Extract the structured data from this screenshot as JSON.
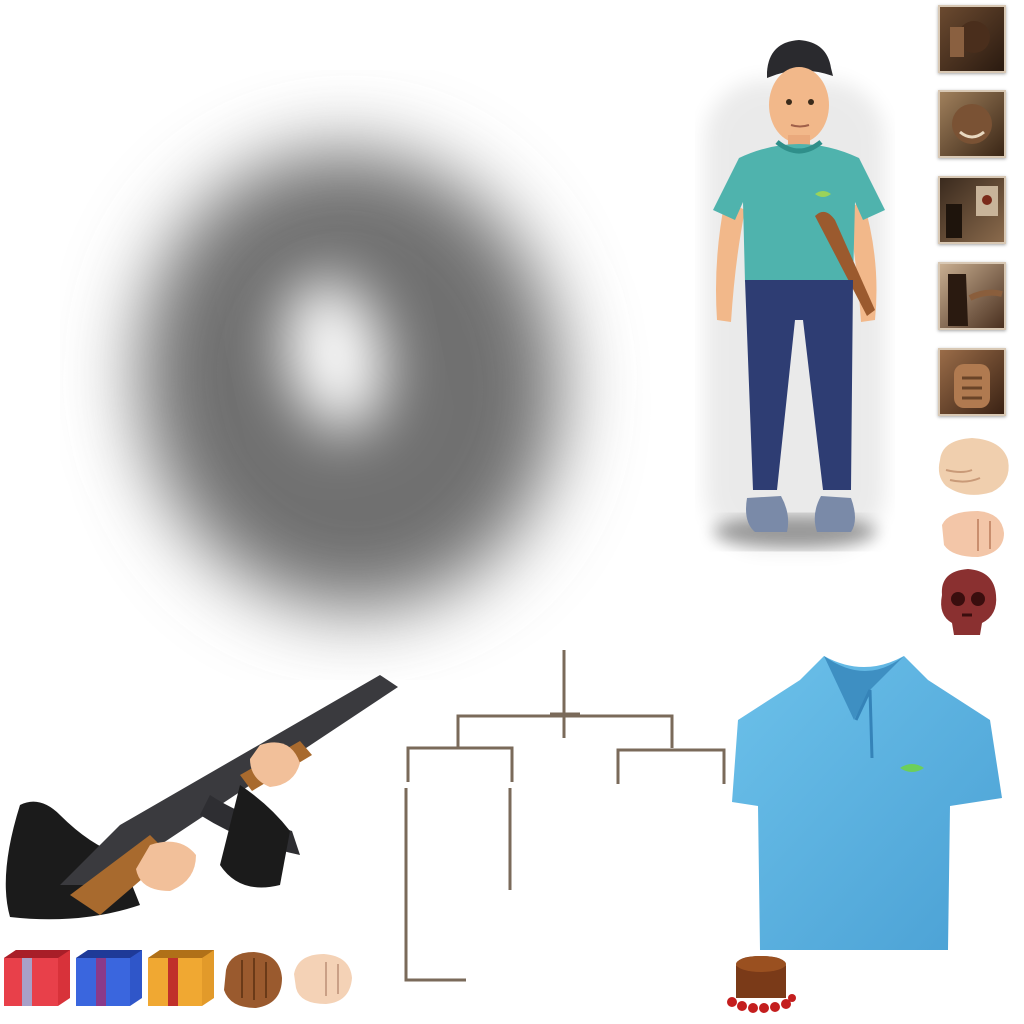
{
  "sheet": {
    "assets": [
      {
        "id": "shadow-blob",
        "icon": "radial-shadow"
      },
      {
        "id": "character",
        "icon": "character-thug-with-club"
      },
      {
        "id": "portraits",
        "count": 5,
        "icon": "sepia-portrait"
      },
      {
        "id": "hand-open",
        "icon": "hand-icon"
      },
      {
        "id": "fist-light",
        "icon": "fist-icon"
      },
      {
        "id": "skull",
        "icon": "skull-icon"
      },
      {
        "id": "rifle-arms",
        "icon": "rifle-icon"
      },
      {
        "id": "tree-connectors",
        "icon": "bracket-lines"
      },
      {
        "id": "polo-shirt",
        "icon": "shirt-icon"
      },
      {
        "id": "crates",
        "count": 3,
        "icon": "gift-box-icon"
      },
      {
        "id": "fist-dark",
        "icon": "fist-icon"
      },
      {
        "id": "fist-pale",
        "icon": "fist-icon"
      },
      {
        "id": "beaded-cake",
        "icon": "cake-icon"
      }
    ],
    "colors": {
      "shirt_teal": "#4fb3ad",
      "jeans": "#2e3d73",
      "polo_blue": "#5fb4e0",
      "skin": "#f0c29a",
      "connector": "#7a6a5a",
      "crate_red": "#d8323a",
      "crate_blue": "#2f56c9",
      "crate_orange": "#e29a2a"
    }
  }
}
